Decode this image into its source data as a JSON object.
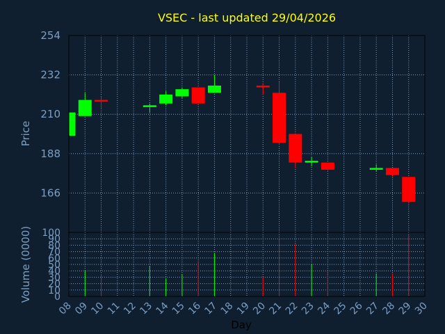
{
  "chart_data": {
    "type": "candlestick",
    "title": "VSEC - last updated 29/04/2026",
    "xlabel": "Day",
    "ylabel_price": "Price",
    "ylabel_volume": "Volume (0000)",
    "price_ticks": [
      166,
      188,
      210,
      232,
      254
    ],
    "price_range": [
      144,
      254
    ],
    "volume_ticks": [
      0,
      10,
      20,
      30,
      40,
      50,
      60,
      70,
      80,
      90,
      100
    ],
    "volume_range": [
      0,
      100
    ],
    "x_ticks": [
      "08",
      "09",
      "10",
      "11",
      "12",
      "13",
      "14",
      "15",
      "16",
      "17",
      "18",
      "19",
      "20",
      "21",
      "22",
      "23",
      "24",
      "25",
      "26",
      "27",
      "28",
      "29",
      "30"
    ],
    "grid": true,
    "colors": {
      "up": "#00ff00",
      "down": "#ff0000",
      "background": "#0f1f30",
      "text": "#7b9fc4",
      "title": "#ffff00",
      "grid": "#7b9fc4"
    },
    "candles": [
      {
        "day": 8,
        "open": 198,
        "high": 211,
        "low": 198,
        "close": 211
      },
      {
        "day": 9,
        "open": 209,
        "high": 222,
        "low": 209,
        "close": 218,
        "volume": 40
      },
      {
        "day": 10,
        "open": 218,
        "high": 220,
        "low": 213,
        "close": 217,
        "volume": 35
      },
      {
        "day": 13,
        "open": 214,
        "high": 216,
        "low": 211,
        "close": 215,
        "volume": 48
      },
      {
        "day": 14,
        "open": 216,
        "high": 223,
        "low": 215,
        "close": 221,
        "volume": 28
      },
      {
        "day": 15,
        "open": 220,
        "high": 225,
        "low": 219,
        "close": 224,
        "volume": 35
      },
      {
        "day": 16,
        "open": 225,
        "high": 225,
        "low": 216,
        "close": 216,
        "volume": 55
      },
      {
        "day": 17,
        "open": 222,
        "high": 232,
        "low": 222,
        "close": 226,
        "volume": 68
      },
      {
        "day": 20,
        "open": 226,
        "high": 227,
        "low": 221,
        "close": 225,
        "volume": 30
      },
      {
        "day": 21,
        "open": 222,
        "high": 228,
        "low": 193,
        "close": 194,
        "volume": 90
      },
      {
        "day": 22,
        "open": 199,
        "high": 199,
        "low": 180,
        "close": 183,
        "volume": 82
      },
      {
        "day": 23,
        "open": 183,
        "high": 186,
        "low": 181,
        "close": 184,
        "volume": 50
      },
      {
        "day": 24,
        "open": 183,
        "high": 183,
        "low": 178,
        "close": 179,
        "volume": 40
      },
      {
        "day": 27,
        "open": 179,
        "high": 182,
        "low": 178,
        "close": 180,
        "volume": 36
      },
      {
        "day": 28,
        "open": 180,
        "high": 180,
        "low": 175,
        "close": 176,
        "volume": 36
      },
      {
        "day": 29,
        "open": 175,
        "high": 175,
        "low": 160,
        "close": 161,
        "volume": 95
      }
    ]
  }
}
